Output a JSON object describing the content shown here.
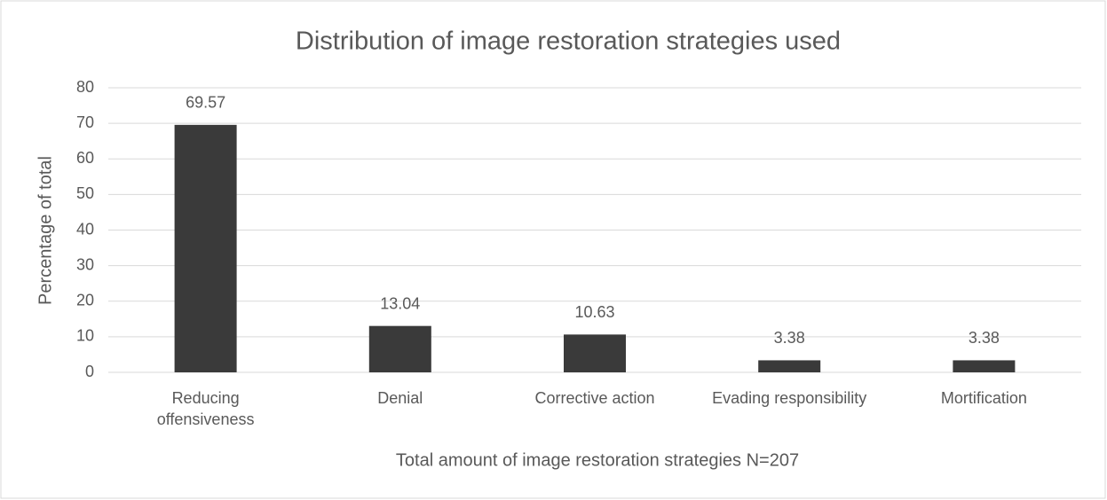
{
  "chart_data": {
    "type": "bar",
    "title": "Distribution of image restoration strategies used",
    "x_label": "Total amount of image restoration strategies N=207",
    "y_label": "Percentage of total",
    "categories": [
      "Reducing offensiveness",
      "Denial",
      "Corrective action",
      "Evading responsibility",
      "Mortification"
    ],
    "values": [
      69.57,
      13.04,
      10.63,
      3.38,
      3.38
    ],
    "color": "#3a3a3a",
    "ylim": [
      0,
      80
    ],
    "yticks": [
      0,
      10,
      20,
      30,
      40,
      50,
      60,
      70,
      80
    ],
    "grid": true
  }
}
